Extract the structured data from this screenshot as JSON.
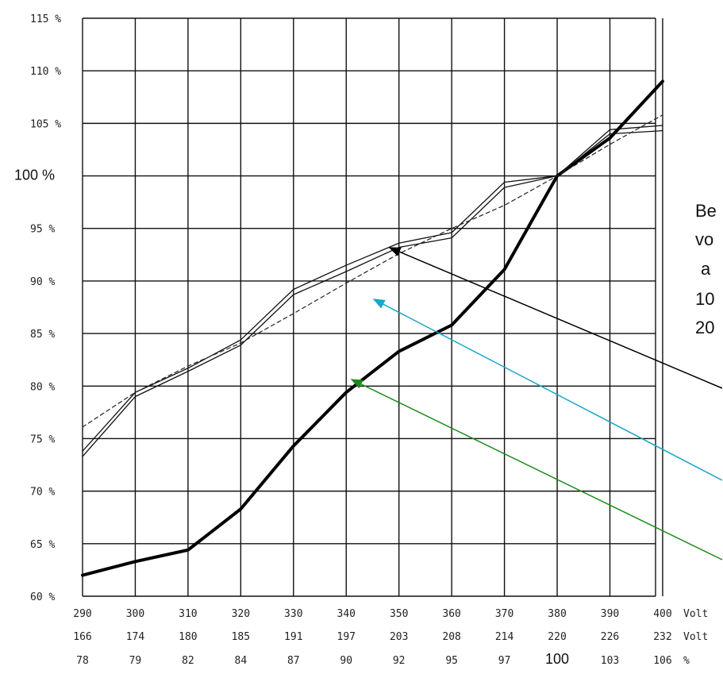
{
  "chart_data": {
    "type": "line",
    "title": "",
    "xlabel": "",
    "ylabel": "",
    "x": [
      290,
      300,
      310,
      320,
      330,
      340,
      350,
      360,
      370,
      380,
      390,
      400
    ],
    "x_secondary": [
      "166",
      "174",
      "180",
      "185",
      "191",
      "197",
      "203",
      "208",
      "214",
      "220",
      "226",
      "232"
    ],
    "x_percent": [
      "78",
      "79",
      "82",
      "84",
      "87",
      "90",
      "92",
      "95",
      "97",
      "100",
      "103",
      "106"
    ],
    "x_row_units": [
      "Volt",
      "Volt",
      "%"
    ],
    "xlim": [
      290,
      400
    ],
    "ylim": [
      60,
      115
    ],
    "y_ticks": [
      "60 %",
      "65 %",
      "70 %",
      "75 %",
      "80 %",
      "85 %",
      "90 %",
      "95 %",
      "100 %",
      "105 %",
      "110 %",
      "115 %"
    ],
    "grid": true,
    "series": [
      {
        "values": [
          62,
          63.3,
          64.4,
          68.3,
          74.3,
          79.4,
          83.3,
          85.8,
          91.1,
          100,
          103.6,
          109
        ]
      },
      {
        "values": [
          73.8,
          79.4,
          81.7,
          84.4,
          89.2,
          91.5,
          93.6,
          94.6,
          99.4,
          100,
          104.4,
          104.8
        ]
      },
      {
        "values": [
          73.3,
          79,
          81.4,
          83.9,
          88.7,
          90.9,
          93.2,
          94.1,
          98.9,
          100,
          104,
          104.3
        ]
      },
      {
        "values": [
          76.1,
          79.4,
          81.9,
          84.1,
          86.9,
          89.8,
          92.6,
          95,
          97.2,
          100,
          103,
          105.8
        ]
      }
    ],
    "side_text": [
      "Be",
      "vo",
      "a",
      "10",
      "20"
    ]
  }
}
